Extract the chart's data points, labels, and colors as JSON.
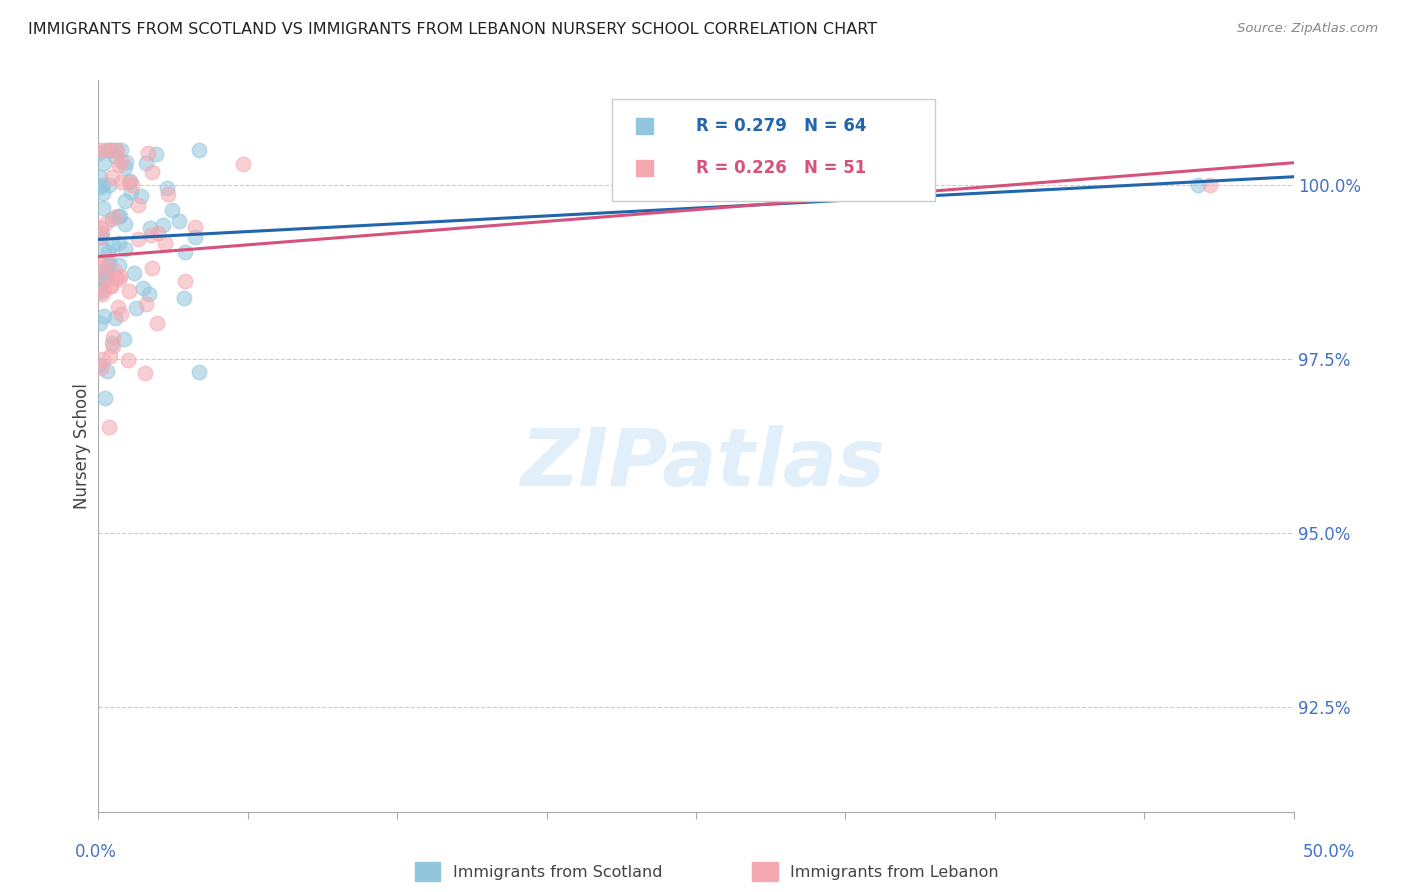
{
  "title": "IMMIGRANTS FROM SCOTLAND VS IMMIGRANTS FROM LEBANON NURSERY SCHOOL CORRELATION CHART",
  "source": "Source: ZipAtlas.com",
  "ylabel": "Nursery School",
  "ytick_values": [
    92.5,
    95.0,
    97.5,
    100.0
  ],
  "xlim": [
    0.0,
    50.0
  ],
  "ylim": [
    91.0,
    101.5
  ],
  "scotland_color": "#92c5de",
  "lebanon_color": "#f4a8b0",
  "scotland_line_color": "#2166ac",
  "lebanon_line_color": "#d6527a",
  "background_color": "#ffffff",
  "marker_size": 110,
  "marker_alpha": 0.55
}
